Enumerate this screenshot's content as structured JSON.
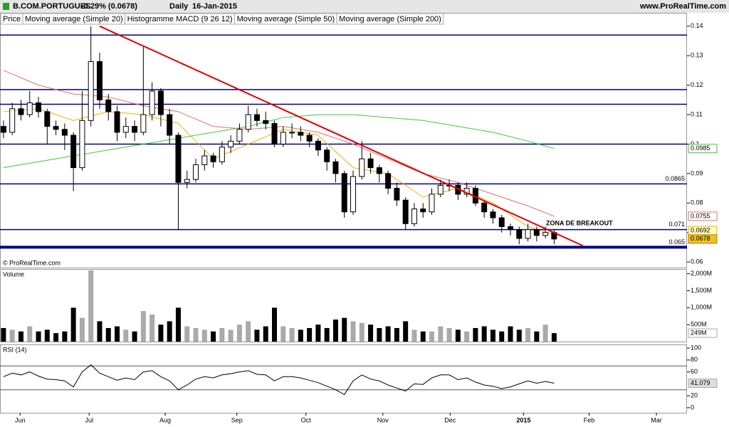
{
  "header": {
    "symbol": "B.COM.PORTUGUES",
    "change": "-0.29% (0.0678)",
    "period": "Daily",
    "date": "16-Jan-2015",
    "website": "www.ProRealTime.com",
    "copyright": "© ProRealTime.com"
  },
  "chart_data": [
    {
      "type": "candlestick",
      "price_label": "Price",
      "macd_label": "Histogramme MACD (9 26 12)",
      "xlim": [
        -0.4,
        78.2
      ],
      "ylim": [
        0.0581,
        0.1443
      ],
      "yticks": [
        0.06,
        0.07,
        0.08,
        0.09,
        0.1,
        0.11,
        0.12,
        0.13,
        0.14
      ],
      "open": [
        0.106,
        0.104,
        0.112,
        0.11,
        0.114,
        0.111,
        0.106,
        0.105,
        0.103,
        0.092,
        0.108,
        0.128,
        0.115,
        0.111,
        0.104,
        0.106,
        0.104,
        0.11,
        0.118,
        0.11,
        0.103,
        0.087,
        0.088,
        0.093,
        0.096,
        0.094,
        0.099,
        0.101,
        0.105,
        0.11,
        0.108,
        0.107,
        0.1,
        0.104,
        0.104,
        0.103,
        0.101,
        0.098,
        0.094,
        0.09,
        0.077,
        0.089,
        0.095,
        0.092,
        0.09,
        0.085,
        0.081,
        0.073,
        0.078,
        0.077,
        0.083,
        0.086,
        0.086,
        0.083,
        0.085,
        0.08,
        0.077,
        0.075,
        0.072,
        0.071,
        0.068,
        0.071,
        0.069,
        0.07
      ],
      "high": [
        0.108,
        0.114,
        0.115,
        0.118,
        0.116,
        0.112,
        0.108,
        0.107,
        0.104,
        0.118,
        0.14,
        0.131,
        0.117,
        0.113,
        0.109,
        0.108,
        0.133,
        0.121,
        0.119,
        0.112,
        0.104,
        0.091,
        0.095,
        0.098,
        0.097,
        0.101,
        0.103,
        0.107,
        0.113,
        0.112,
        0.111,
        0.108,
        0.106,
        0.107,
        0.106,
        0.104,
        0.102,
        0.099,
        0.095,
        0.091,
        0.091,
        0.101,
        0.097,
        0.093,
        0.091,
        0.087,
        0.082,
        0.08,
        0.08,
        0.085,
        0.088,
        0.088,
        0.087,
        0.087,
        0.086,
        0.081,
        0.078,
        0.076,
        0.073,
        0.072,
        0.073,
        0.072,
        0.072,
        0.071
      ],
      "low": [
        0.102,
        0.103,
        0.108,
        0.109,
        0.109,
        0.1,
        0.103,
        0.098,
        0.084,
        0.091,
        0.106,
        0.112,
        0.108,
        0.101,
        0.102,
        0.101,
        0.103,
        0.108,
        0.106,
        0.1,
        0.071,
        0.085,
        0.087,
        0.091,
        0.092,
        0.093,
        0.097,
        0.1,
        0.104,
        0.106,
        0.105,
        0.099,
        0.099,
        0.102,
        0.101,
        0.099,
        0.096,
        0.091,
        0.087,
        0.075,
        0.076,
        0.088,
        0.09,
        0.087,
        0.083,
        0.079,
        0.071,
        0.072,
        0.075,
        0.076,
        0.082,
        0.084,
        0.081,
        0.082,
        0.079,
        0.075,
        0.073,
        0.07,
        0.069,
        0.066,
        0.067,
        0.067,
        0.068,
        0.066
      ],
      "close": [
        0.104,
        0.112,
        0.11,
        0.114,
        0.111,
        0.106,
        0.105,
        0.103,
        0.092,
        0.108,
        0.128,
        0.115,
        0.111,
        0.104,
        0.106,
        0.104,
        0.11,
        0.118,
        0.11,
        0.103,
        0.087,
        0.088,
        0.093,
        0.096,
        0.094,
        0.099,
        0.101,
        0.105,
        0.11,
        0.108,
        0.107,
        0.1,
        0.104,
        0.104,
        0.103,
        0.101,
        0.098,
        0.094,
        0.09,
        0.077,
        0.089,
        0.095,
        0.092,
        0.09,
        0.085,
        0.081,
        0.073,
        0.078,
        0.077,
        0.083,
        0.086,
        0.086,
        0.083,
        0.085,
        0.08,
        0.077,
        0.075,
        0.072,
        0.071,
        0.068,
        0.071,
        0.069,
        0.07,
        0.0678
      ],
      "series": [
        {
          "name": "Moving average (Simple 20)",
          "color": "#f0b000",
          "x": [
            0,
            4,
            8,
            12,
            16,
            20,
            24,
            28,
            32,
            36,
            40,
            44,
            48,
            52,
            56,
            60,
            63
          ],
          "values": [
            0.111,
            0.112,
            0.108,
            0.111,
            0.11,
            0.107,
            0.095,
            0.1,
            0.105,
            0.103,
            0.092,
            0.09,
            0.082,
            0.085,
            0.08,
            0.072,
            0.0692
          ]
        },
        {
          "name": "Moving average (Simple 50)",
          "color": "#e07070",
          "x": [
            0,
            4,
            8,
            12,
            16,
            20,
            24,
            28,
            32,
            36,
            40,
            44,
            48,
            52,
            56,
            60,
            63
          ],
          "values": [
            0.125,
            0.12,
            0.117,
            0.116,
            0.113,
            0.111,
            0.106,
            0.105,
            0.106,
            0.104,
            0.1,
            0.095,
            0.09,
            0.087,
            0.083,
            0.079,
            0.0755
          ]
        },
        {
          "name": "Moving average (Simple 200)",
          "color": "#3cc83c",
          "x": [
            0,
            4,
            8,
            12,
            16,
            20,
            24,
            28,
            32,
            36,
            40,
            44,
            48,
            52,
            56,
            60,
            63
          ],
          "values": [
            0.092,
            0.094,
            0.096,
            0.098,
            0.1,
            0.102,
            0.104,
            0.106,
            0.109,
            0.11,
            0.11,
            0.109,
            0.108,
            0.106,
            0.104,
            0.101,
            0.0985
          ]
        }
      ],
      "levels": [
        0.137,
        0.1185,
        0.1135,
        0.1,
        0.0865,
        0.071,
        0.065
      ],
      "level_labels": [
        null,
        null,
        null,
        null,
        "0.0865",
        "0.071",
        "0.065"
      ],
      "level_color": "#000080",
      "trendline": {
        "x": [
          11.0,
          66.3
        ],
        "y": [
          0.14,
          0.0655
        ],
        "color": "#e00000"
      },
      "annotation": "ZONA DE BREAKOUT"
    },
    {
      "type": "bar",
      "label": "Volume",
      "xlim": [
        -0.4,
        78.2
      ],
      "ylim": [
        0,
        2120
      ],
      "yticks": [
        {
          "value": 500,
          "label": "500M"
        },
        {
          "value": 1000,
          "label": "1,000M"
        },
        {
          "value": 1500,
          "label": "1,500M"
        },
        {
          "value": 2000,
          "label": "2,000M"
        }
      ],
      "values": [
        400,
        350,
        300,
        450,
        300,
        350,
        250,
        300,
        1000,
        700,
        2100,
        600,
        400,
        450,
        350,
        300,
        900,
        800,
        500,
        600,
        1000,
        450,
        400,
        350,
        300,
        400,
        350,
        500,
        600,
        350,
        450,
        1000,
        450,
        400,
        350,
        400,
        500,
        400,
        650,
        700,
        600,
        550,
        500,
        400,
        450,
        400,
        600,
        350,
        300,
        300,
        450,
        400,
        350,
        300,
        400,
        450,
        350,
        300,
        450,
        350,
        400,
        300,
        500,
        249
      ],
      "value_labels": [
        null,
        null,
        null,
        null,
        null,
        null,
        null,
        null,
        null,
        null,
        null,
        null,
        null,
        null,
        null,
        null,
        null,
        null,
        null,
        null,
        null,
        null,
        null,
        null,
        null,
        null,
        null,
        null,
        null,
        null,
        null,
        null,
        null,
        null,
        null,
        null,
        null,
        null,
        null,
        null,
        null,
        null,
        null,
        null,
        null,
        null,
        null,
        null,
        null,
        null,
        null,
        null,
        null,
        null,
        null,
        null,
        null,
        null,
        null,
        null,
        null,
        null,
        null,
        "249M"
      ]
    },
    {
      "type": "line",
      "label": "RSI (14)",
      "xlim": [
        -0.4,
        78.2
      ],
      "ylim": [
        -8.5,
        104.9
      ],
      "yticks": [
        0,
        20,
        60,
        80,
        100
      ],
      "levels": [
        30,
        70
      ],
      "xticks": [
        {
          "value": 1.9,
          "label": "Jun"
        },
        {
          "value": 9.8,
          "label": "Jul"
        },
        {
          "value": 18.5,
          "label": "Aug"
        },
        {
          "value": 26.7,
          "label": "Sep"
        },
        {
          "value": 34.6,
          "label": "Oct"
        },
        {
          "value": 43.4,
          "label": "Nov"
        },
        {
          "value": 51.1,
          "label": "Dec"
        },
        {
          "value": 59.5,
          "label": "2015"
        },
        {
          "value": 67.0,
          "label": "Feb"
        },
        {
          "value": 74.7,
          "label": "Mar"
        }
      ],
      "values": [
        52,
        58,
        55,
        60,
        53,
        48,
        47,
        45,
        35,
        60,
        72,
        58,
        52,
        46,
        50,
        47,
        60,
        62,
        52,
        45,
        30,
        38,
        48,
        52,
        50,
        55,
        57,
        60,
        62,
        56,
        55,
        45,
        52,
        52,
        50,
        46,
        42,
        36,
        30,
        22,
        45,
        55,
        48,
        45,
        38,
        33,
        28,
        40,
        39,
        50,
        55,
        55,
        47,
        50,
        43,
        38,
        36,
        32,
        35,
        40,
        45,
        41,
        44,
        41.079
      ]
    }
  ]
}
